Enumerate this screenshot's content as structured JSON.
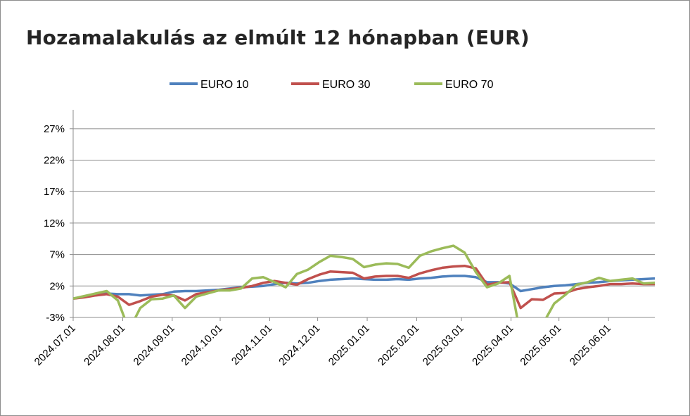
{
  "chart_data": {
    "type": "line",
    "title": "Hozamalakulás az elmúlt 12 hónapban (EUR)",
    "xlabel": "",
    "ylabel": "",
    "y_ticks": [
      "-3%",
      "2%",
      "7%",
      "12%",
      "17%",
      "22%",
      "27%"
    ],
    "ylim": [
      -3,
      30
    ],
    "x_ticks": [
      "2024.07.01",
      "2024.08.01",
      "2024.09.01",
      "2024.10.01",
      "2024.11.01",
      "2024.12.01",
      "2025.01.01",
      "2025.02.01",
      "2025.03.01",
      "2025.04.01",
      "2025.05.01",
      "2025.06.01"
    ],
    "x_range": [
      "2024.07.01",
      "2025.06.30"
    ],
    "grid": "horizontal",
    "legend_position": "top",
    "series": [
      {
        "name": "EURO 10",
        "color": "#4f81bd",
        "points": [
          [
            "2024.07.01",
            0.0
          ],
          [
            "2024.07.08",
            0.3
          ],
          [
            "2024.07.15",
            0.6
          ],
          [
            "2024.07.22",
            0.8
          ],
          [
            "2024.07.29",
            0.7
          ],
          [
            "2024.08.05",
            0.7
          ],
          [
            "2024.08.12",
            0.5
          ],
          [
            "2024.08.19",
            0.6
          ],
          [
            "2024.08.26",
            0.7
          ],
          [
            "2024.09.02",
            1.1
          ],
          [
            "2024.09.09",
            1.2
          ],
          [
            "2024.09.16",
            1.2
          ],
          [
            "2024.09.23",
            1.3
          ],
          [
            "2024.09.30",
            1.4
          ],
          [
            "2024.10.07",
            1.6
          ],
          [
            "2024.10.14",
            1.8
          ],
          [
            "2024.10.21",
            1.9
          ],
          [
            "2024.10.28",
            2.0
          ],
          [
            "2024.11.04",
            2.3
          ],
          [
            "2024.11.11",
            2.5
          ],
          [
            "2024.11.18",
            2.4
          ],
          [
            "2024.11.25",
            2.5
          ],
          [
            "2024.12.02",
            2.8
          ],
          [
            "2024.12.09",
            3.0
          ],
          [
            "2024.12.16",
            3.1
          ],
          [
            "2024.12.23",
            3.2
          ],
          [
            "2024.12.30",
            3.1
          ],
          [
            "2025.01.06",
            3.0
          ],
          [
            "2025.01.13",
            3.0
          ],
          [
            "2025.01.20",
            3.1
          ],
          [
            "2025.01.27",
            3.0
          ],
          [
            "2025.02.03",
            3.2
          ],
          [
            "2025.02.10",
            3.3
          ],
          [
            "2025.02.17",
            3.5
          ],
          [
            "2025.02.24",
            3.6
          ],
          [
            "2025.03.03",
            3.6
          ],
          [
            "2025.03.10",
            3.4
          ],
          [
            "2025.03.17",
            2.6
          ],
          [
            "2025.03.24",
            2.6
          ],
          [
            "2025.03.31",
            2.4
          ],
          [
            "2025.04.07",
            1.2
          ],
          [
            "2025.04.14",
            1.5
          ],
          [
            "2025.04.21",
            1.8
          ],
          [
            "2025.04.28",
            2.0
          ],
          [
            "2025.05.05",
            2.1
          ],
          [
            "2025.05.12",
            2.3
          ],
          [
            "2025.05.19",
            2.5
          ],
          [
            "2025.05.26",
            2.6
          ],
          [
            "2025.06.02",
            2.8
          ],
          [
            "2025.06.09",
            2.9
          ],
          [
            "2025.06.16",
            3.0
          ],
          [
            "2025.06.23",
            3.1
          ],
          [
            "2025.06.30",
            3.2
          ]
        ]
      },
      {
        "name": "EURO 30",
        "color": "#c0504d",
        "points": [
          [
            "2024.07.01",
            0.0
          ],
          [
            "2024.07.08",
            0.2
          ],
          [
            "2024.07.15",
            0.5
          ],
          [
            "2024.07.22",
            0.7
          ],
          [
            "2024.07.29",
            0.3
          ],
          [
            "2024.08.05",
            -1.0
          ],
          [
            "2024.08.12",
            -0.4
          ],
          [
            "2024.08.19",
            0.3
          ],
          [
            "2024.08.26",
            0.6
          ],
          [
            "2024.09.02",
            0.5
          ],
          [
            "2024.09.09",
            -0.3
          ],
          [
            "2024.09.16",
            0.7
          ],
          [
            "2024.09.23",
            1.0
          ],
          [
            "2024.09.30",
            1.3
          ],
          [
            "2024.10.07",
            1.5
          ],
          [
            "2024.10.14",
            1.7
          ],
          [
            "2024.10.21",
            2.0
          ],
          [
            "2024.10.28",
            2.5
          ],
          [
            "2024.11.04",
            2.8
          ],
          [
            "2024.11.11",
            2.5
          ],
          [
            "2024.11.18",
            2.2
          ],
          [
            "2024.11.25",
            3.1
          ],
          [
            "2024.12.02",
            3.8
          ],
          [
            "2024.12.09",
            4.3
          ],
          [
            "2024.12.16",
            4.2
          ],
          [
            "2024.12.23",
            4.1
          ],
          [
            "2024.12.30",
            3.2
          ],
          [
            "2025.01.06",
            3.5
          ],
          [
            "2025.01.13",
            3.6
          ],
          [
            "2025.01.20",
            3.6
          ],
          [
            "2025.01.27",
            3.3
          ],
          [
            "2025.02.03",
            4.0
          ],
          [
            "2025.02.10",
            4.5
          ],
          [
            "2025.02.17",
            4.9
          ],
          [
            "2025.02.24",
            5.1
          ],
          [
            "2025.03.03",
            5.2
          ],
          [
            "2025.03.10",
            4.8
          ],
          [
            "2025.03.17",
            2.2
          ],
          [
            "2025.03.24",
            2.5
          ],
          [
            "2025.03.31",
            2.6
          ],
          [
            "2025.04.07",
            -1.5
          ],
          [
            "2025.04.14",
            -0.1
          ],
          [
            "2025.04.21",
            -0.2
          ],
          [
            "2025.04.28",
            0.8
          ],
          [
            "2025.05.05",
            0.9
          ],
          [
            "2025.05.12",
            1.5
          ],
          [
            "2025.05.19",
            1.8
          ],
          [
            "2025.05.26",
            2.0
          ],
          [
            "2025.06.02",
            2.3
          ],
          [
            "2025.06.09",
            2.3
          ],
          [
            "2025.06.16",
            2.4
          ],
          [
            "2025.06.23",
            2.3
          ],
          [
            "2025.06.30",
            2.3
          ]
        ]
      },
      {
        "name": "EURO 70",
        "color": "#9bbb59",
        "points": [
          [
            "2024.07.01",
            0.0
          ],
          [
            "2024.07.08",
            0.4
          ],
          [
            "2024.07.15",
            0.8
          ],
          [
            "2024.07.22",
            1.2
          ],
          [
            "2024.07.29",
            -0.3
          ],
          [
            "2024.08.05",
            -5.0
          ],
          [
            "2024.08.12",
            -1.5
          ],
          [
            "2024.08.19",
            -0.1
          ],
          [
            "2024.08.26",
            0.0
          ],
          [
            "2024.09.02",
            0.5
          ],
          [
            "2024.09.09",
            -1.5
          ],
          [
            "2024.09.16",
            0.3
          ],
          [
            "2024.09.23",
            0.8
          ],
          [
            "2024.09.30",
            1.3
          ],
          [
            "2024.10.07",
            1.3
          ],
          [
            "2024.10.14",
            1.6
          ],
          [
            "2024.10.21",
            3.2
          ],
          [
            "2024.10.28",
            3.4
          ],
          [
            "2024.11.04",
            2.6
          ],
          [
            "2024.11.11",
            1.8
          ],
          [
            "2024.11.18",
            3.9
          ],
          [
            "2024.11.25",
            4.6
          ],
          [
            "2024.12.02",
            5.8
          ],
          [
            "2024.12.09",
            6.8
          ],
          [
            "2024.12.16",
            6.6
          ],
          [
            "2024.12.23",
            6.3
          ],
          [
            "2024.12.30",
            5.0
          ],
          [
            "2025.01.06",
            5.4
          ],
          [
            "2025.01.13",
            5.6
          ],
          [
            "2025.01.20",
            5.5
          ],
          [
            "2025.01.27",
            4.9
          ],
          [
            "2025.02.03",
            6.8
          ],
          [
            "2025.02.10",
            7.5
          ],
          [
            "2025.02.17",
            8.0
          ],
          [
            "2025.02.24",
            8.4
          ],
          [
            "2025.03.03",
            7.3
          ],
          [
            "2025.03.10",
            4.2
          ],
          [
            "2025.03.17",
            1.8
          ],
          [
            "2025.03.24",
            2.4
          ],
          [
            "2025.03.31",
            3.6
          ],
          [
            "2025.04.07",
            -6.0
          ],
          [
            "2025.04.14",
            -5.0
          ],
          [
            "2025.04.21",
            -4.0
          ],
          [
            "2025.04.28",
            -0.8
          ],
          [
            "2025.05.05",
            0.6
          ],
          [
            "2025.05.12",
            2.2
          ],
          [
            "2025.05.19",
            2.6
          ],
          [
            "2025.05.26",
            3.3
          ],
          [
            "2025.06.02",
            2.8
          ],
          [
            "2025.06.09",
            3.0
          ],
          [
            "2025.06.16",
            3.2
          ],
          [
            "2025.06.23",
            2.4
          ],
          [
            "2025.06.30",
            2.5
          ]
        ]
      }
    ]
  }
}
